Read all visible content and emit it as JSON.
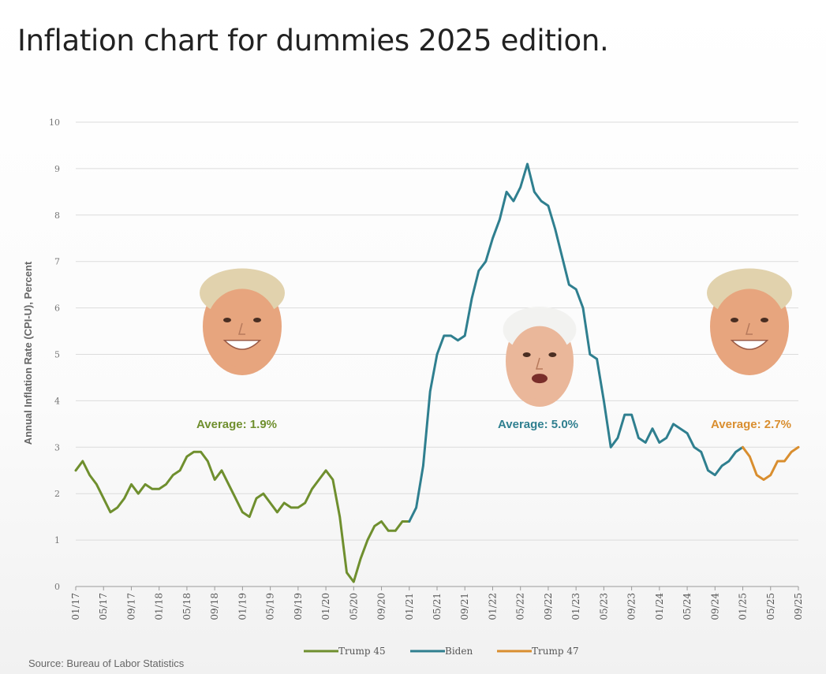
{
  "title": "Inflation chart for dummies 2025 edition.",
  "source": "Source: Bureau of Labor Statistics",
  "chart_data": {
    "type": "line",
    "ylabel": "Annual Inflation Rate (CPI-U), Percent",
    "ylim": [
      0,
      10
    ],
    "yticks": [
      0,
      1,
      2,
      3,
      4,
      5,
      6,
      7,
      8,
      9,
      10
    ],
    "xtick_labels": [
      "01/17",
      "05/17",
      "09/17",
      "01/18",
      "05/18",
      "09/18",
      "01/19",
      "05/19",
      "09/19",
      "01/20",
      "05/20",
      "09/20",
      "01/21",
      "05/21",
      "09/21",
      "01/22",
      "05/22",
      "09/22",
      "01/23",
      "05/23",
      "09/23",
      "01/24",
      "05/24",
      "09/24",
      "01/25",
      "05/25",
      "09/25"
    ],
    "grid": true,
    "legend_position": "bottom",
    "series": [
      {
        "name": "Trump 45",
        "color": "#6f8f2e",
        "start": "01/17",
        "values": [
          2.5,
          2.7,
          2.4,
          2.2,
          1.9,
          1.6,
          1.7,
          1.9,
          2.2,
          2.0,
          2.2,
          2.1,
          2.1,
          2.2,
          2.4,
          2.5,
          2.8,
          2.9,
          2.9,
          2.7,
          2.3,
          2.5,
          2.2,
          1.9,
          1.6,
          1.5,
          1.9,
          2.0,
          1.8,
          1.6,
          1.8,
          1.7,
          1.7,
          1.8,
          2.1,
          2.3,
          2.5,
          2.3,
          1.5,
          0.3,
          0.1,
          0.6,
          1.0,
          1.3,
          1.4,
          1.2,
          1.2,
          1.4,
          1.4
        ]
      },
      {
        "name": "Biden",
        "color": "#2f7f8f",
        "start": "01/21",
        "values": [
          1.4,
          1.7,
          2.6,
          4.2,
          5.0,
          5.4,
          5.4,
          5.3,
          5.4,
          6.2,
          6.8,
          7.0,
          7.5,
          7.9,
          8.5,
          8.3,
          8.6,
          9.1,
          8.5,
          8.3,
          8.2,
          7.7,
          7.1,
          6.5,
          6.4,
          6.0,
          5.0,
          4.9,
          4.0,
          3.0,
          3.2,
          3.7,
          3.7,
          3.2,
          3.1,
          3.4,
          3.1,
          3.2,
          3.5,
          3.4,
          3.3,
          3.0,
          2.9,
          2.5,
          2.4,
          2.6,
          2.7,
          2.9,
          3.0
        ]
      },
      {
        "name": "Trump 47",
        "color": "#d98e2f",
        "start": "01/25",
        "values": [
          3.0,
          2.8,
          2.4,
          2.3,
          2.4,
          2.7,
          2.7,
          2.9,
          3.0
        ]
      }
    ],
    "annotations": [
      {
        "text": "Average: 1.9%",
        "color": "#6f8f2e"
      },
      {
        "text": "Average: 5.0%",
        "color": "#2f7f8f"
      },
      {
        "text": "Average: 2.7%",
        "color": "#d98e2f"
      }
    ]
  },
  "portraits": [
    {
      "name": "trump-45-portrait",
      "skin": "#e7a57e",
      "hair": "#e1d2ad"
    },
    {
      "name": "biden-portrait",
      "skin": "#eab79a",
      "hair": "#f2f2f0"
    },
    {
      "name": "trump-47-portrait",
      "skin": "#e7a57e",
      "hair": "#e1d2ad"
    }
  ]
}
